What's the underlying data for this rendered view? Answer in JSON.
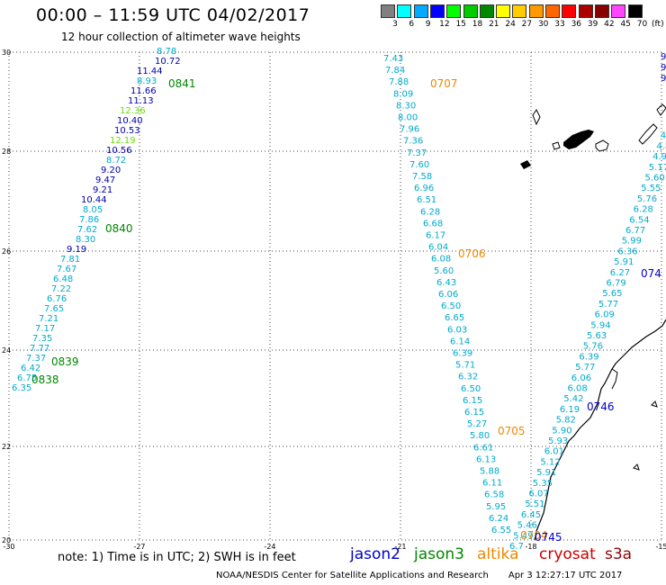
{
  "title": "00:00 – 11:59 UTC 04/02/2017",
  "subtitle": "12 hour collection of altimeter wave heights",
  "colorbar": {
    "labels": [
      "3",
      "6",
      "9",
      "12",
      "15",
      "18",
      "21",
      "24",
      "27",
      "30",
      "33",
      "36",
      "39",
      "42",
      "45",
      "70"
    ],
    "unit": "(ft)",
    "colors": [
      "#808080",
      "#00ffff",
      "#00aaff",
      "#0000ff",
      "#00ff00",
      "#00cc00",
      "#008800",
      "#ffff00",
      "#ffcc00",
      "#ff9900",
      "#ff6600",
      "#ff0000",
      "#aa0000",
      "#880000",
      "#ff44ff",
      "#000000"
    ]
  },
  "axes": {
    "lat_labels": [
      "30",
      "28",
      "26",
      "24",
      "22",
      "20"
    ],
    "lon_labels": [
      "-30",
      "-27",
      "-24",
      "-21",
      "-18",
      "-15"
    ]
  },
  "tracks": [
    {
      "color": "#00aacc",
      "labels": [
        "8.78"
      ]
    },
    {
      "color": "#0000aa",
      "labels": [
        "10.72",
        "11.44"
      ]
    },
    {
      "color": "#00aacc",
      "labels": [
        "8.93"
      ]
    },
    {
      "color": "#0000aa",
      "labels": [
        "11.66",
        "11.13"
      ]
    },
    {
      "color": "#66dd00",
      "labels": [
        "12.36"
      ]
    },
    {
      "color": "#0000aa",
      "labels": [
        "10.40",
        "10.53"
      ]
    },
    {
      "color": "#66dd00",
      "labels": [
        "12.19"
      ]
    },
    {
      "color": "#0000aa",
      "labels": [
        "10.56"
      ]
    }
  ],
  "track1": [
    {
      "v": "8.78",
      "c": "#00aacc"
    },
    {
      "v": "10.72",
      "c": "#0000aa"
    },
    {
      "v": "11.44",
      "c": "#0000aa"
    },
    {
      "v": "8.93",
      "c": "#00aacc"
    },
    {
      "v": "11.66",
      "c": "#0000aa"
    },
    {
      "v": "11.13",
      "c": "#0000aa"
    },
    {
      "v": "12.36",
      "c": "#66dd00"
    },
    {
      "v": "10.40",
      "c": "#0000aa"
    },
    {
      "v": "10.53",
      "c": "#0000aa"
    },
    {
      "v": "12.19",
      "c": "#66dd00"
    },
    {
      "v": "10.56",
      "c": "#0000aa"
    },
    {
      "v": "8.72",
      "c": "#00aacc"
    },
    {
      "v": "9.20",
      "c": "#0000aa"
    },
    {
      "v": "9.47",
      "c": "#0000aa"
    },
    {
      "v": "9.21",
      "c": "#0000aa"
    },
    {
      "v": "10.44",
      "c": "#0000aa"
    },
    {
      "v": "8.05",
      "c": "#00aacc"
    },
    {
      "v": "7.86",
      "c": "#00aacc"
    },
    {
      "v": "7.62",
      "c": "#00aacc"
    },
    {
      "v": "8.30",
      "c": "#00aacc"
    },
    {
      "v": "9.19",
      "c": "#0000aa"
    },
    {
      "v": "7.81",
      "c": "#00aacc"
    },
    {
      "v": "7.67",
      "c": "#00aacc"
    },
    {
      "v": "6.48",
      "c": "#00aacc"
    },
    {
      "v": "7.22",
      "c": "#00aacc"
    },
    {
      "v": "6.76",
      "c": "#00aacc"
    },
    {
      "v": "7.65",
      "c": "#00aacc"
    },
    {
      "v": "7.21",
      "c": "#00aacc"
    },
    {
      "v": "7.17",
      "c": "#00aacc"
    },
    {
      "v": "7.35",
      "c": "#00aacc"
    },
    {
      "v": "7.77",
      "c": "#00aacc"
    },
    {
      "v": "7.37",
      "c": "#00aacc"
    },
    {
      "v": "6.42",
      "c": "#00aacc"
    },
    {
      "v": "6.75",
      "c": "#00aacc"
    },
    {
      "v": "6.35",
      "c": "#00aacc"
    }
  ],
  "track2": [
    "7.43",
    "7.84",
    "7.88",
    "8.09",
    "8.30",
    "8.00",
    "7.96",
    "7.36",
    "7.37",
    "7.60",
    "7.58",
    "6.96",
    "6.51",
    "6.28",
    "6.68",
    "6.17",
    "6.04",
    "6.08",
    "5.60",
    "6.43",
    "6.06",
    "6.50",
    "6.65",
    "6.03",
    "6.14",
    "6.39",
    "5.71",
    "6.32",
    "6.50",
    "6.15",
    "6.15",
    "5.27",
    "5.80",
    "6.61",
    "6.13",
    "5.88",
    "6.11",
    "6.58",
    "5.95",
    "6.24",
    "6.55"
  ],
  "track3": [
    "6.7",
    "5.49",
    "5.46",
    "6.45",
    "5.51",
    "6.07",
    "5.35",
    "5.91",
    "5.12",
    "6.01",
    "5.93",
    "5.90",
    "5.82",
    "6.19",
    "5.42",
    "6.08",
    "6.06",
    "5.77",
    "6.39",
    "5.76",
    "5.63",
    "5.94",
    "6.09",
    "5.77",
    "5.65",
    "6.79",
    "6.27",
    "5.91",
    "6.36",
    "5.99",
    "6.77",
    "6.54",
    "6.28",
    "5.76",
    "5.55",
    "5.60",
    "5.17",
    "4.9",
    "4.8",
    "4"
  ],
  "track3_edge": [
    "9",
    "9",
    "9"
  ],
  "time_labels": [
    {
      "text": "0841",
      "color": "#008800"
    },
    {
      "text": "0840",
      "color": "#008800"
    },
    {
      "text": "0839",
      "color": "#008800"
    },
    {
      "text": "0838",
      "color": "#008800"
    },
    {
      "text": "0707",
      "color": "#ee8800"
    },
    {
      "text": "0706",
      "color": "#ee8800"
    },
    {
      "text": "0705",
      "color": "#ee8800"
    },
    {
      "text": "0704",
      "color": "#ee8800"
    },
    {
      "text": "0745",
      "color": "#0000cc"
    },
    {
      "text": "0746",
      "color": "#0000cc"
    },
    {
      "text": "074",
      "color": "#0000cc"
    }
  ],
  "note": "note: 1) Time is in UTC; 2) SWH is in feet",
  "satellites": [
    {
      "name": "jason2",
      "color": "#0000cc"
    },
    {
      "name": "jason3",
      "color": "#008800"
    },
    {
      "name": "altika",
      "color": "#ee8800"
    },
    {
      "name": "cryosat",
      "color": "#cc0000"
    },
    {
      "name": "s3a",
      "color": "#990000"
    }
  ],
  "footer": {
    "credit": "NOAA/NESDIS Center for Satellite Applications and Research",
    "timestamp": "Apr  3 12:27:17 UTC 2017"
  }
}
